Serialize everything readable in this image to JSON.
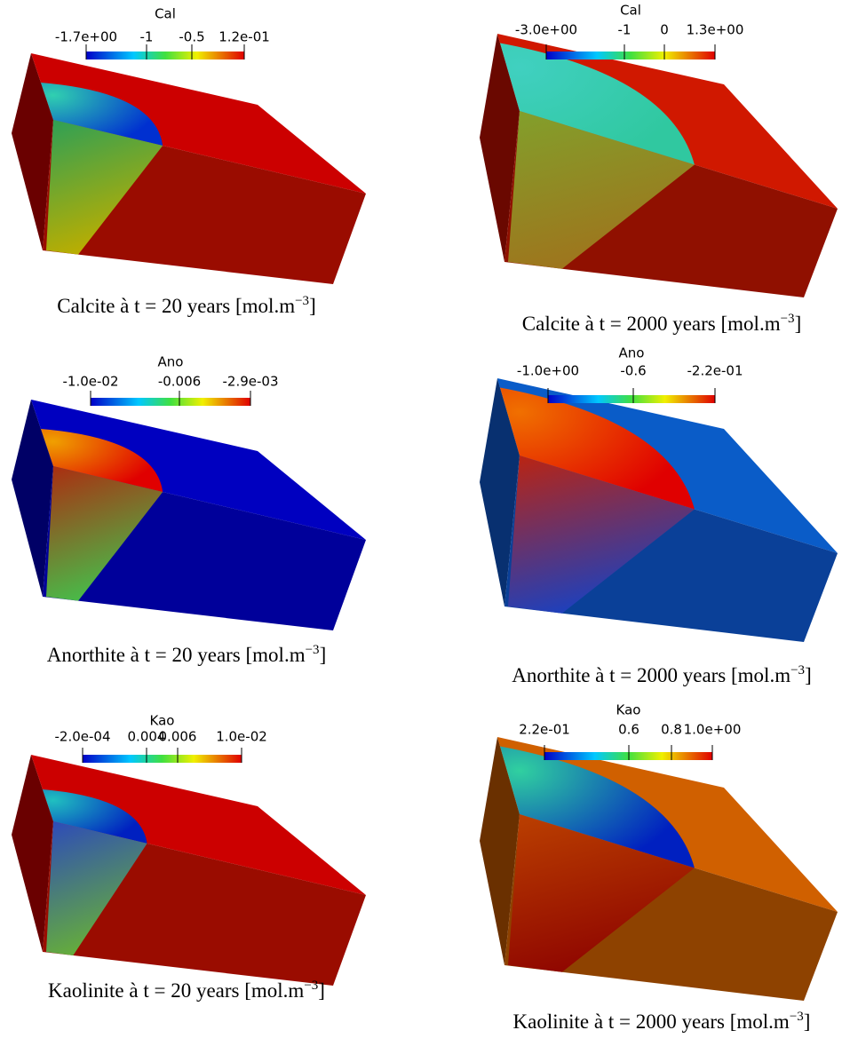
{
  "panels": [
    {
      "colorbar": {
        "title": "Cal",
        "ticks": [
          "-1.7e+00",
          "-1",
          "-0.5",
          "1.2e-01"
        ]
      },
      "caption": {
        "text": "Calcite à t = 20 years [mol.m",
        "sup": "−3",
        "end": "]"
      }
    },
    {
      "colorbar": {
        "title": "Cal",
        "ticks": [
          "-3.0e+00",
          "-1",
          "0",
          "1.3e+00"
        ]
      },
      "caption": {
        "text": "Calcite à t = 2000 years [mol.m",
        "sup": "−3",
        "end": "]"
      }
    },
    {
      "colorbar": {
        "title": "Ano",
        "ticks": [
          "-1.0e-02",
          "-0.006",
          "-2.9e-03"
        ]
      },
      "caption": {
        "text": "Anorthite à t = 20 years [mol.m",
        "sup": "−3",
        "end": "]"
      }
    },
    {
      "colorbar": {
        "title": "Ano",
        "ticks": [
          "-1.0e+00",
          "-0.6",
          "-2.2e-01"
        ]
      },
      "caption": {
        "text": "Anorthite à t = 2000 years [mol.m",
        "sup": "−3",
        "end": "]"
      }
    },
    {
      "colorbar": {
        "title": "Kao",
        "ticks": [
          "-2.0e-04",
          "0.004",
          "0.006",
          "1.0e-02"
        ]
      },
      "caption": {
        "text": "Kaolinite à t = 20 years [mol.m",
        "sup": "−3",
        "end": "]"
      }
    },
    {
      "colorbar": {
        "title": "Kao",
        "ticks": [
          "2.2e-01",
          "0.6",
          "0.8",
          "1.0e+00"
        ]
      },
      "caption": {
        "text": "Kaolinite à t = 2000 years [mol.m",
        "sup": "−3",
        "end": "]"
      }
    }
  ]
}
